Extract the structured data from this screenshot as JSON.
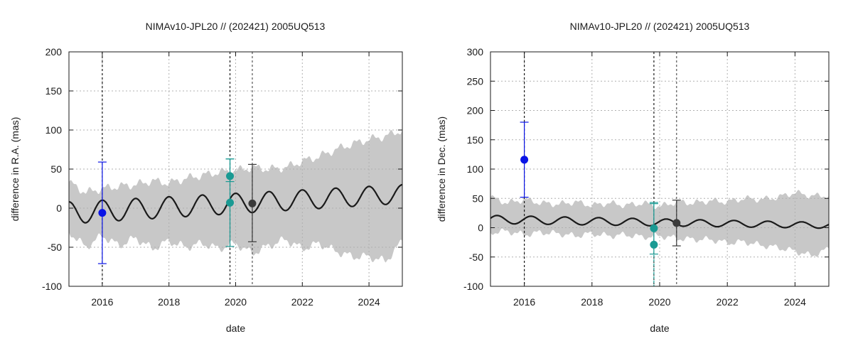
{
  "chart_data": [
    {
      "type": "line",
      "title": "NIMAv10-JPL20 // (202421) 2005UQ513",
      "xlabel": "date",
      "ylabel": "difference in R.A. (mas)",
      "xlim": [
        2015,
        2025
      ],
      "ylim": [
        -100,
        200
      ],
      "xticks": [
        2016,
        2018,
        2020,
        2022,
        2024
      ],
      "yticks": [
        -100,
        -50,
        0,
        50,
        100,
        150,
        200
      ],
      "grid": true,
      "colors": {
        "band": "#c8c8c8",
        "curve": "#1a1a1a",
        "grid": "#b0b0b0"
      },
      "band": {
        "description": "uncertainty envelope",
        "x": [
          2015.0,
          2015.5,
          2016.0,
          2016.5,
          2017.0,
          2017.5,
          2018.0,
          2018.5,
          2019.0,
          2019.5,
          2020.0,
          2020.5,
          2021.0,
          2021.5,
          2022.0,
          2022.5,
          2023.0,
          2023.5,
          2024.0,
          2024.5,
          2025.0
        ],
        "upper": [
          33,
          20,
          25,
          28,
          30,
          35,
          32,
          38,
          42,
          46,
          48,
          52,
          50,
          52,
          60,
          66,
          75,
          82,
          88,
          92,
          100
        ],
        "lower": [
          -30,
          -50,
          -35,
          -48,
          -38,
          -52,
          -42,
          -50,
          -45,
          -52,
          -45,
          -58,
          -48,
          -40,
          -52,
          -45,
          -55,
          -62,
          -62,
          -68,
          -42
        ]
      },
      "curve": {
        "name": "model difference",
        "x_start": 2015.0,
        "x_end": 2025.0,
        "period_years": 1.0,
        "amplitude_start": 14,
        "amplitude_end": 12,
        "offset_start": -6,
        "offset_end": 18,
        "phase_peak_at": 2016.0
      },
      "vlines": [
        {
          "x": 2016.0,
          "color": "#1a1a1a"
        },
        {
          "x": 2019.83,
          "color": "#1a1a1a"
        },
        {
          "x": 2020.5,
          "color": "#555555"
        }
      ],
      "points": [
        {
          "x": 2016.0,
          "y": -6,
          "err_low": -71,
          "err_high": 59,
          "color": "#0a14e6"
        },
        {
          "x": 2019.83,
          "y": 41,
          "err_low": 34,
          "err_high": 63,
          "color": "#1a9a93"
        },
        {
          "x": 2019.83,
          "y": 7,
          "err_low": -49,
          "err_high": 63,
          "color": "#1a9a93"
        },
        {
          "x": 2020.5,
          "y": 6,
          "err_low": -43,
          "err_high": 56,
          "color": "#3a3a3a"
        }
      ]
    },
    {
      "type": "line",
      "title": "NIMAv10-JPL20 // (202421) 2005UQ513",
      "xlabel": "date",
      "ylabel": "difference in Dec. (mas)",
      "xlim": [
        2015,
        2025
      ],
      "ylim": [
        -100,
        300
      ],
      "xticks": [
        2016,
        2018,
        2020,
        2022,
        2024
      ],
      "yticks": [
        -100,
        -50,
        0,
        50,
        100,
        150,
        200,
        250,
        300
      ],
      "grid": true,
      "colors": {
        "band": "#c8c8c8",
        "curve": "#1a1a1a",
        "grid": "#b0b0b0"
      },
      "band": {
        "description": "uncertainty envelope",
        "x": [
          2015.0,
          2015.5,
          2016.0,
          2016.5,
          2017.0,
          2017.5,
          2018.0,
          2018.5,
          2019.0,
          2019.5,
          2020.0,
          2020.5,
          2021.0,
          2021.5,
          2022.0,
          2022.5,
          2023.0,
          2023.5,
          2024.0,
          2024.5,
          2025.0
        ],
        "upper": [
          52,
          42,
          48,
          42,
          40,
          44,
          38,
          42,
          38,
          42,
          36,
          44,
          42,
          46,
          44,
          50,
          48,
          52,
          60,
          54,
          55
        ],
        "lower": [
          -8,
          -6,
          -12,
          -8,
          -10,
          -14,
          -10,
          -14,
          -12,
          -16,
          -14,
          -18,
          -20,
          -20,
          -26,
          -24,
          -30,
          -34,
          -40,
          -48,
          -36
        ]
      },
      "curve": {
        "name": "model difference",
        "x_start": 2015.0,
        "x_end": 2025.0,
        "period_years": 1.0,
        "amplitude_start": 7,
        "amplitude_end": 5,
        "offset_start": 14,
        "offset_end": 4,
        "phase_peak_at": 2016.2
      },
      "vlines": [
        {
          "x": 2016.0,
          "color": "#1a1a1a"
        },
        {
          "x": 2019.83,
          "color": "#1a1a1a"
        },
        {
          "x": 2020.5,
          "color": "#555555"
        }
      ],
      "points": [
        {
          "x": 2016.0,
          "y": 116,
          "err_low": 52,
          "err_high": 180,
          "color": "#0a14e6"
        },
        {
          "x": 2019.83,
          "y": -1,
          "err_low": -45,
          "err_high": 43,
          "color": "#1a9a93"
        },
        {
          "x": 2019.83,
          "y": -29,
          "err_low": -100,
          "err_high": 41,
          "color": "#1a9a93"
        },
        {
          "x": 2020.5,
          "y": 8,
          "err_low": -31,
          "err_high": 47,
          "color": "#3a3a3a"
        }
      ]
    }
  ]
}
